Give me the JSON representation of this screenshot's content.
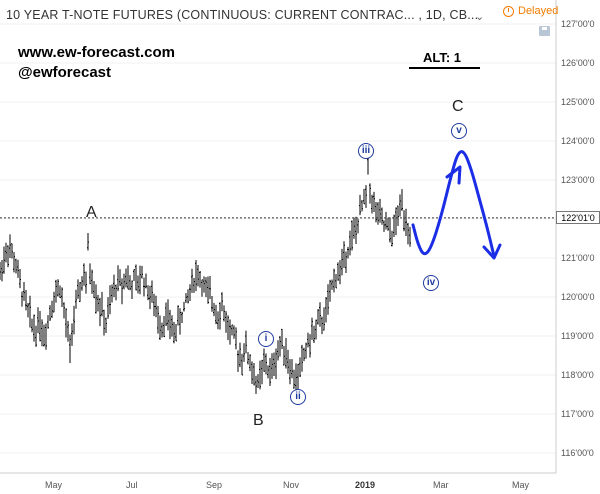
{
  "header": {
    "title": "10 YEAR T-NOTE FUTURES (CONTINUOUS: CURRENT CONTRAC... , 1D, CB...",
    "menu_glyph": "⌄",
    "status": "Delayed"
  },
  "watermark": {
    "website": "www.ew-forecast.com",
    "handle": "@ewforecast",
    "alt": "ALT:  1"
  },
  "wave_labels": [
    "A",
    "B",
    "C"
  ],
  "subwave_labels": [
    "i",
    "ii",
    "iii",
    "iv",
    "v"
  ],
  "colors": {
    "bars": "#000000",
    "projection": "#1b2ee6",
    "subwave_circle": "#1f3a9e",
    "delayed": "#f57c00",
    "axis": "#cccccc"
  },
  "chart_data": {
    "type": "ohlc",
    "title": "10 YEAR T-NOTE FUTURES (CONTINUOUS: CURRENT CONTRAC... , 1D, CB...",
    "x_axis": {
      "tick_labels": [
        "May",
        "Jul",
        "Sep",
        "Nov",
        "2019",
        "Mar",
        "May"
      ]
    },
    "y_axis": {
      "tick_labels": [
        "127'00'0",
        "126'00'0",
        "125'00'0",
        "124'00'0",
        "123'00'0",
        "122'00'0",
        "121'00'0",
        "120'00'0",
        "119'00'0",
        "118'00'0",
        "117'00'0",
        "116'00'0"
      ],
      "range": [
        115.6,
        127.35
      ]
    },
    "last_price": 122.03,
    "last_price_label": "122'01'0",
    "price_path": [
      [
        0,
        120.6
      ],
      [
        4,
        121.0
      ],
      [
        8,
        121.3
      ],
      [
        12,
        121.1
      ],
      [
        16,
        120.8
      ],
      [
        20,
        120.3
      ],
      [
        24,
        120.0
      ],
      [
        28,
        119.6
      ],
      [
        32,
        119.3
      ],
      [
        36,
        119.2
      ],
      [
        40,
        119.4
      ],
      [
        44,
        119.0
      ],
      [
        48,
        119.4
      ],
      [
        52,
        119.9
      ],
      [
        56,
        120.1
      ],
      [
        60,
        120.3
      ],
      [
        64,
        119.6
      ],
      [
        68,
        119.0
      ],
      [
        70,
        118.6
      ],
      [
        72,
        119.2
      ],
      [
        76,
        119.7
      ],
      [
        80,
        120.2
      ],
      [
        84,
        120.6
      ],
      [
        86,
        120.3
      ],
      [
        88,
        121.2
      ],
      [
        90,
        120.7
      ],
      [
        94,
        120.3
      ],
      [
        98,
        119.9
      ],
      [
        102,
        119.6
      ],
      [
        106,
        119.3
      ],
      [
        110,
        119.8
      ],
      [
        114,
        120.2
      ],
      [
        118,
        120.4
      ],
      [
        122,
        120.3
      ],
      [
        126,
        120.6
      ],
      [
        130,
        120.3
      ],
      [
        134,
        120.4
      ],
      [
        138,
        120.3
      ],
      [
        142,
        120.6
      ],
      [
        146,
        120.3
      ],
      [
        150,
        120.1
      ],
      [
        154,
        119.8
      ],
      [
        158,
        119.5
      ],
      [
        162,
        119.3
      ],
      [
        166,
        119.5
      ],
      [
        170,
        119.3
      ],
      [
        174,
        119.1
      ],
      [
        178,
        119.3
      ],
      [
        182,
        119.6
      ],
      [
        186,
        119.8
      ],
      [
        190,
        120.2
      ],
      [
        194,
        120.5
      ],
      [
        198,
        120.6
      ],
      [
        202,
        120.4
      ],
      [
        206,
        120.1
      ],
      [
        210,
        120.0
      ],
      [
        214,
        119.8
      ],
      [
        218,
        119.6
      ],
      [
        222,
        119.8
      ],
      [
        226,
        119.4
      ],
      [
        230,
        119.1
      ],
      [
        234,
        118.9
      ],
      [
        238,
        118.6
      ],
      [
        242,
        118.5
      ],
      [
        246,
        118.7
      ],
      [
        250,
        118.3
      ],
      [
        254,
        118.0
      ],
      [
        258,
        117.7
      ],
      [
        262,
        118.1
      ],
      [
        266,
        118.3
      ],
      [
        270,
        118.0
      ],
      [
        274,
        118.3
      ],
      [
        278,
        118.6
      ],
      [
        282,
        118.9
      ],
      [
        286,
        118.6
      ],
      [
        290,
        118.2
      ],
      [
        294,
        117.9
      ],
      [
        298,
        118.0
      ],
      [
        302,
        118.3
      ],
      [
        306,
        118.7
      ],
      [
        310,
        118.9
      ],
      [
        314,
        119.1
      ],
      [
        318,
        119.3
      ],
      [
        322,
        119.4
      ],
      [
        326,
        119.6
      ],
      [
        330,
        120.0
      ],
      [
        334,
        120.5
      ],
      [
        338,
        120.6
      ],
      [
        342,
        120.8
      ],
      [
        346,
        121.2
      ],
      [
        350,
        121.4
      ],
      [
        354,
        121.6
      ],
      [
        358,
        121.9
      ],
      [
        362,
        122.3
      ],
      [
        366,
        122.6
      ],
      [
        368,
        123.25
      ],
      [
        370,
        122.8
      ],
      [
        374,
        122.3
      ],
      [
        378,
        122.1
      ],
      [
        382,
        121.9
      ],
      [
        386,
        121.8
      ],
      [
        390,
        121.6
      ],
      [
        394,
        121.7
      ],
      [
        398,
        122.1
      ],
      [
        402,
        122.4
      ],
      [
        406,
        122.0
      ],
      [
        410,
        121.7
      ]
    ],
    "projection": [
      [
        413,
        121.85
      ],
      [
        418,
        121.35
      ],
      [
        424,
        121.05
      ],
      [
        431,
        121.25
      ],
      [
        441,
        122.05
      ],
      [
        452,
        123.2
      ],
      [
        458,
        123.7
      ],
      [
        464,
        123.75
      ],
      [
        471,
        123.3
      ],
      [
        479,
        122.55
      ],
      [
        487,
        121.8
      ],
      [
        494,
        121.05
      ]
    ],
    "annotations": [
      {
        "text": "A",
        "x": 90,
        "y": 122.08
      },
      {
        "text": "B",
        "x": 258,
        "y": 116.9
      },
      {
        "text": "C",
        "x": 457,
        "y": 124.92
      },
      {
        "text": "i",
        "x": 266,
        "y": 118.98
      },
      {
        "text": "ii",
        "x": 298,
        "y": 117.3
      },
      {
        "text": "iii",
        "x": 367,
        "y": 123.8
      },
      {
        "text": "iv",
        "x": 431,
        "y": 120.2
      },
      {
        "text": "v",
        "x": 459,
        "y": 124.4
      }
    ]
  }
}
